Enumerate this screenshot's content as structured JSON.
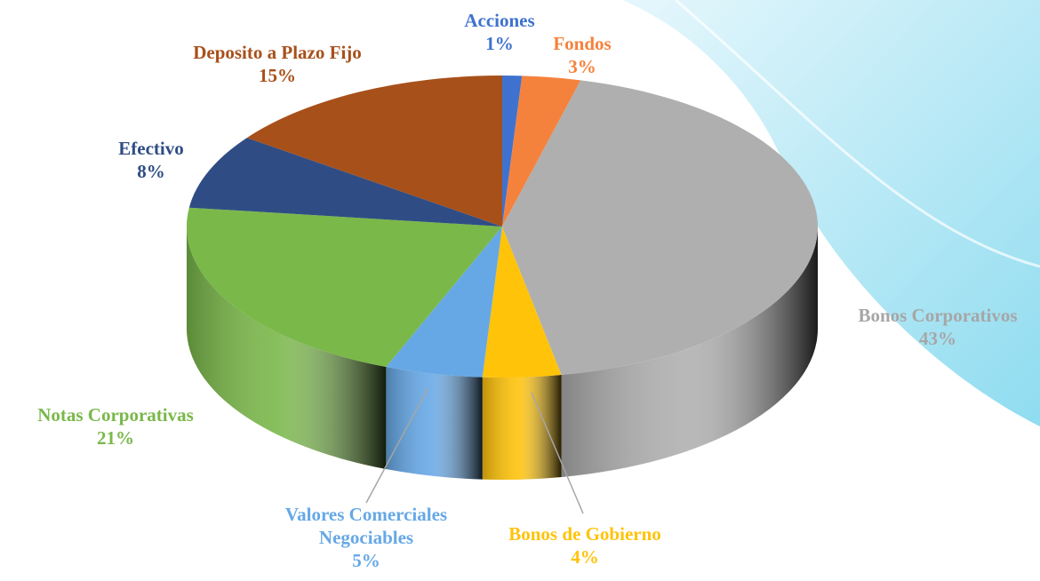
{
  "chart_data": {
    "type": "pie",
    "categories": [
      "Acciones",
      "Fondos",
      "Bonos Corporativos",
      "Bonos de Gobierno",
      "Valores Comerciales Negociables",
      "Notas Corporativas",
      "Efectivo",
      "Deposito a Plazo Fijo"
    ],
    "values": [
      1,
      3,
      43,
      4,
      5,
      21,
      8,
      15
    ],
    "value_labels": [
      "1%",
      "3%",
      "43%",
      "4%",
      "5%",
      "21%",
      "8%",
      "15%"
    ],
    "colors": [
      "#3f72cf",
      "#f4823c",
      "#afafaf",
      "#ffc30a",
      "#66a8e6",
      "#7ab84a",
      "#2f4d84",
      "#a8501a"
    ]
  }
}
